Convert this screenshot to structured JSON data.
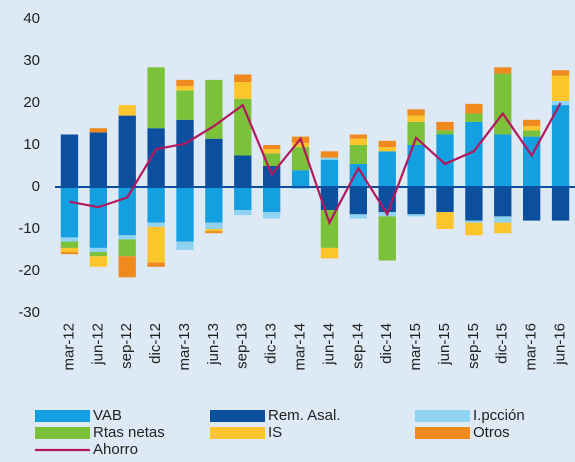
{
  "chart_data": {
    "type": "bar",
    "categories": [
      "mar-12",
      "jun-12",
      "sep-12",
      "dic-12",
      "mar-13",
      "jun-13",
      "sep-13",
      "dic-13",
      "mar-14",
      "jun-14",
      "sep-14",
      "dic-14",
      "mar-15",
      "jun-15",
      "sep-15",
      "dic-15",
      "mar-16",
      "jun-16"
    ],
    "series": [
      {
        "name": "VAB",
        "color": "#139fe0",
        "values": [
          -12,
          -14.5,
          -11.5,
          -8.5,
          -13,
          -8.5,
          -5.5,
          -6,
          4,
          6.5,
          5.5,
          8.5,
          10,
          12.5,
          15.5,
          12.5,
          12,
          19.5
        ]
      },
      {
        "name": "Rem. Asal.",
        "color": "#0c4f9e",
        "values": [
          12.5,
          13,
          17,
          14,
          16,
          11.5,
          7.5,
          5,
          0,
          -5.5,
          -6.5,
          -6,
          -6.5,
          -6,
          -8,
          -7,
          -8,
          -8
        ]
      },
      {
        "name": "I.pcción",
        "color": "#8fd2f2",
        "values": [
          -1,
          -1,
          -1,
          -1,
          -2,
          -1.5,
          -1.2,
          -1.5,
          -0.5,
          0.5,
          -1,
          -1,
          -0.5,
          0,
          -0.5,
          -1.5,
          0,
          1
        ]
      },
      {
        "name": "Rtas netas",
        "color": "#7cc13a",
        "values": [
          -1.5,
          -1,
          -4,
          14.5,
          7,
          14,
          13.5,
          3,
          5.5,
          -9,
          4.5,
          -10.5,
          5.5,
          1,
          2,
          14.5,
          1.5,
          0
        ]
      },
      {
        "name": "IS",
        "color": "#fdc52c",
        "values": [
          -1,
          -2.5,
          2.5,
          -8.5,
          1,
          -0.5,
          4,
          1,
          1,
          -2.5,
          1.5,
          1,
          1.5,
          -4,
          -3,
          -2.5,
          1,
          6
        ]
      },
      {
        "name": "Otros",
        "color": "#f08a1e",
        "values": [
          -0.5,
          1,
          -5,
          -1,
          1.5,
          -0.5,
          1.8,
          1,
          1.5,
          1.5,
          1,
          1.5,
          1.5,
          2,
          2.3,
          1.5,
          1.5,
          1.3
        ]
      },
      {
        "name": "Ahorro",
        "color": "#b3175e",
        "type": "line",
        "values": [
          -3.5,
          -4.8,
          -2.5,
          9,
          10.3,
          14.5,
          19.5,
          3,
          11.5,
          -8.5,
          4.5,
          -6.5,
          11.7,
          5.5,
          8.5,
          17.5,
          7.5,
          20
        ]
      }
    ],
    "ylim": [
      -30,
      40
    ],
    "yticks": [
      -30,
      -20,
      -10,
      0,
      10,
      20,
      30,
      40
    ]
  }
}
